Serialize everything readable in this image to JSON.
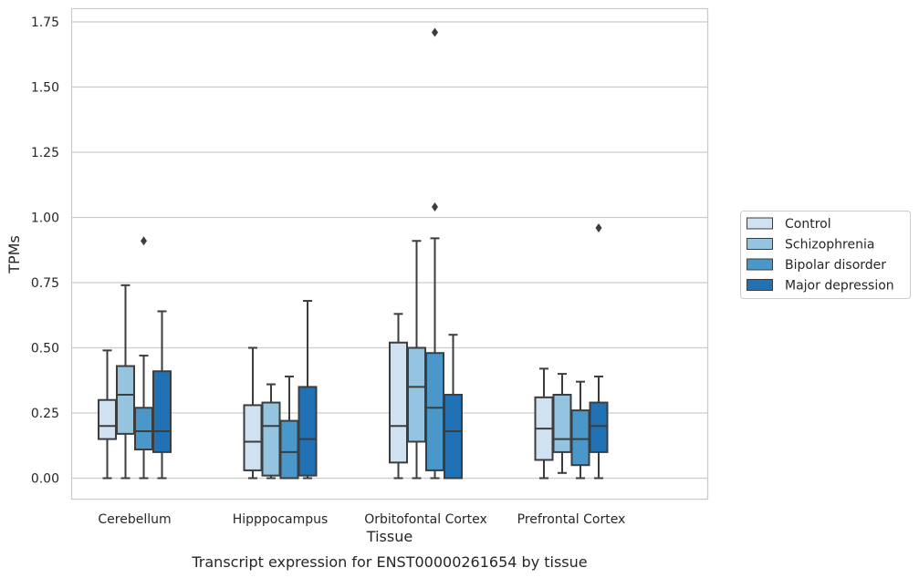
{
  "caption": "Transcript expression for ENST00000261654 by tissue",
  "chart_data": {
    "type": "boxplot",
    "xlabel": "Tissue",
    "ylabel": "TPMs",
    "ylim": [
      -0.08,
      1.8
    ],
    "yticks": [
      "0.00",
      "0.25",
      "0.50",
      "0.75",
      "1.00",
      "1.25",
      "1.50",
      "1.75"
    ],
    "grid": "horizontal",
    "legend_position": "right",
    "categories": [
      "Cerebellum",
      "Hipppocampus",
      "Orbitofontal Cortex",
      "Prefrontal Cortex"
    ],
    "series": [
      {
        "name": "Control",
        "color": "#d0e1f2",
        "boxes": [
          {
            "whisker_low": 0.0,
            "q1": 0.15,
            "median": 0.2,
            "q3": 0.3,
            "whisker_high": 0.49,
            "outliers": []
          },
          {
            "whisker_low": 0.0,
            "q1": 0.03,
            "median": 0.14,
            "q3": 0.28,
            "whisker_high": 0.5,
            "outliers": []
          },
          {
            "whisker_low": 0.0,
            "q1": 0.06,
            "median": 0.2,
            "q3": 0.52,
            "whisker_high": 0.63,
            "outliers": []
          },
          {
            "whisker_low": 0.0,
            "q1": 0.07,
            "median": 0.19,
            "q3": 0.31,
            "whisker_high": 0.42,
            "outliers": []
          }
        ]
      },
      {
        "name": "Schizophrenia",
        "color": "#94c4df",
        "boxes": [
          {
            "whisker_low": 0.0,
            "q1": 0.17,
            "median": 0.32,
            "q3": 0.43,
            "whisker_high": 0.74,
            "outliers": []
          },
          {
            "whisker_low": 0.0,
            "q1": 0.01,
            "median": 0.2,
            "q3": 0.29,
            "whisker_high": 0.36,
            "outliers": []
          },
          {
            "whisker_low": 0.0,
            "q1": 0.14,
            "median": 0.35,
            "q3": 0.5,
            "whisker_high": 0.91,
            "outliers": []
          },
          {
            "whisker_low": 0.02,
            "q1": 0.1,
            "median": 0.15,
            "q3": 0.32,
            "whisker_high": 0.4,
            "outliers": []
          }
        ]
      },
      {
        "name": "Bipolar disorder",
        "color": "#4a98c9",
        "boxes": [
          {
            "whisker_low": 0.0,
            "q1": 0.11,
            "median": 0.18,
            "q3": 0.27,
            "whisker_high": 0.47,
            "outliers": [
              0.91
            ]
          },
          {
            "whisker_low": 0.0,
            "q1": 0.0,
            "median": 0.1,
            "q3": 0.22,
            "whisker_high": 0.39,
            "outliers": []
          },
          {
            "whisker_low": 0.0,
            "q1": 0.03,
            "median": 0.27,
            "q3": 0.48,
            "whisker_high": 0.92,
            "outliers": [
              1.04,
              1.71
            ]
          },
          {
            "whisker_low": 0.0,
            "q1": 0.05,
            "median": 0.15,
            "q3": 0.26,
            "whisker_high": 0.37,
            "outliers": []
          }
        ]
      },
      {
        "name": "Major depression",
        "color": "#2171b5",
        "boxes": [
          {
            "whisker_low": 0.0,
            "q1": 0.1,
            "median": 0.18,
            "q3": 0.41,
            "whisker_high": 0.64,
            "outliers": []
          },
          {
            "whisker_low": 0.0,
            "q1": 0.01,
            "median": 0.15,
            "q3": 0.35,
            "whisker_high": 0.68,
            "outliers": []
          },
          {
            "whisker_low": 0.0,
            "q1": 0.0,
            "median": 0.18,
            "q3": 0.32,
            "whisker_high": 0.55,
            "outliers": []
          },
          {
            "whisker_low": 0.0,
            "q1": 0.1,
            "median": 0.2,
            "q3": 0.29,
            "whisker_high": 0.39,
            "outliers": [
              0.96
            ]
          }
        ]
      }
    ]
  }
}
